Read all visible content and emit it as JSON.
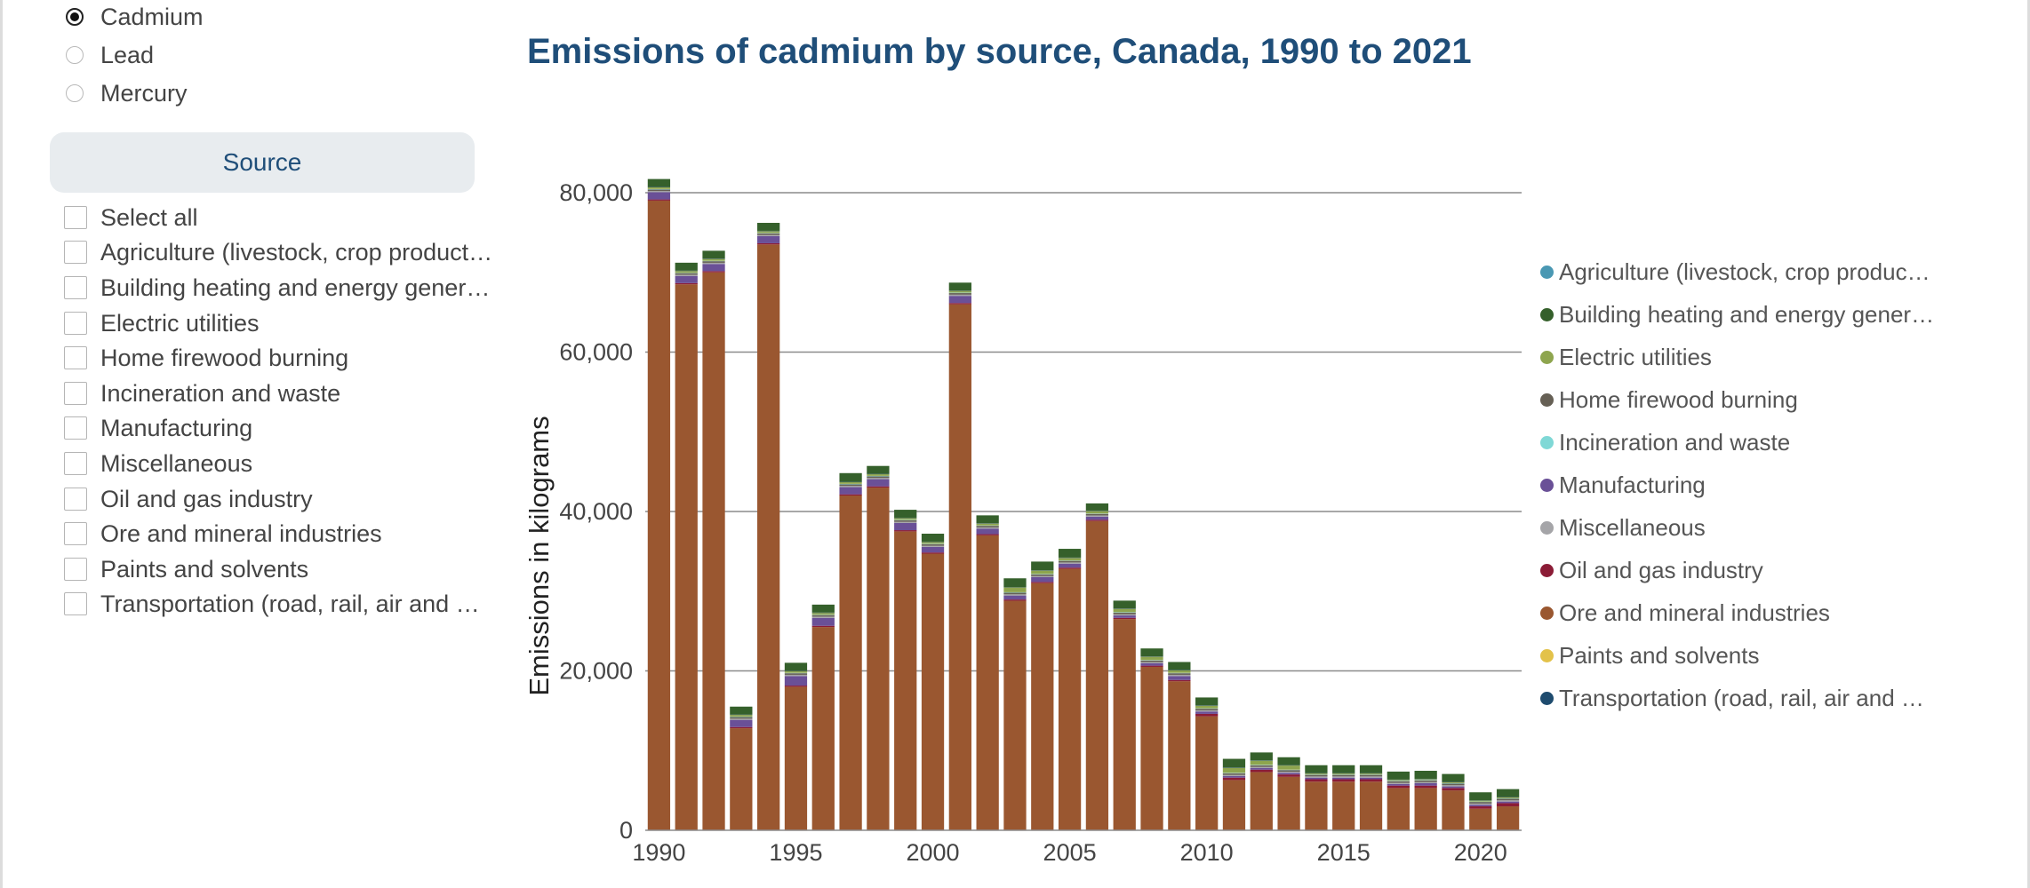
{
  "controls": {
    "pollutants": [
      {
        "label": "Cadmium",
        "checked": true
      },
      {
        "label": "Lead",
        "checked": false
      },
      {
        "label": "Mercury",
        "checked": false
      }
    ],
    "source_button": "Source",
    "source_options": [
      "Select all",
      "Agriculture (livestock, crop product…",
      "Building heating and energy gener…",
      "Electric utilities",
      "Home firewood burning",
      "Incineration and waste",
      "Manufacturing",
      "Miscellaneous",
      "Oil and gas industry",
      "Ore and mineral industries",
      "Paints and solvents",
      "Transportation (road, rail, air and …"
    ]
  },
  "chart_data": {
    "type": "bar",
    "stacked": true,
    "title": "Emissions of cadmium by source, Canada, 1990 to 2021",
    "xlabel": "",
    "ylabel": "Emissions in kilograms",
    "ylim": [
      0,
      80000
    ],
    "yticks": [
      0,
      20000,
      40000,
      60000,
      80000
    ],
    "ytick_labels": [
      "0",
      "20,000",
      "40,000",
      "60,000",
      "80,000"
    ],
    "xtick_labels": [
      "1990",
      "1995",
      "2000",
      "2005",
      "2010",
      "2015",
      "2020"
    ],
    "grid": true,
    "legend_position": "right",
    "categories": [
      "1990",
      "1991",
      "1992",
      "1993",
      "1994",
      "1995",
      "1996",
      "1997",
      "1998",
      "1999",
      "2000",
      "2001",
      "2002",
      "2003",
      "2004",
      "2005",
      "2006",
      "2007",
      "2008",
      "2009",
      "2010",
      "2011",
      "2012",
      "2013",
      "2014",
      "2015",
      "2016",
      "2017",
      "2018",
      "2019",
      "2020",
      "2021"
    ],
    "series": [
      {
        "name": "Agriculture (livestock, crop produc…",
        "color": "#4a98b3",
        "values": [
          5,
          5,
          5,
          5,
          5,
          5,
          5,
          5,
          5,
          5,
          5,
          5,
          5,
          5,
          5,
          5,
          5,
          5,
          5,
          5,
          5,
          5,
          5,
          5,
          5,
          5,
          5,
          5,
          5,
          5,
          5,
          5
        ]
      },
      {
        "name": "Ore and mineral industries",
        "color": "#9a5730",
        "values": [
          79000,
          68500,
          70000,
          12800,
          73500,
          18000,
          25500,
          42000,
          43000,
          37500,
          34700,
          66000,
          37000,
          28800,
          31000,
          32800,
          38800,
          26500,
          20500,
          18700,
          14300,
          6300,
          7300,
          6700,
          6100,
          6100,
          6100,
          5300,
          5300,
          5000,
          2700,
          3000
        ]
      },
      {
        "name": "Oil and gas industry",
        "color": "#8b1c36",
        "values": [
          150,
          150,
          150,
          150,
          150,
          150,
          150,
          150,
          150,
          150,
          150,
          150,
          150,
          150,
          150,
          150,
          150,
          150,
          150,
          150,
          300,
          300,
          300,
          300,
          300,
          300,
          300,
          300,
          300,
          300,
          300,
          400
        ]
      },
      {
        "name": "Manufacturing",
        "color": "#6a5097",
        "values": [
          900,
          900,
          900,
          900,
          900,
          1200,
          1000,
          900,
          900,
          900,
          700,
          900,
          700,
          500,
          600,
          500,
          400,
          300,
          300,
          500,
          300,
          200,
          200,
          200,
          200,
          200,
          200,
          200,
          300,
          200,
          200,
          200
        ]
      },
      {
        "name": "Miscellaneous",
        "color": "#a5a5a8",
        "values": [
          150,
          150,
          150,
          150,
          150,
          150,
          150,
          150,
          150,
          150,
          150,
          150,
          150,
          150,
          150,
          150,
          150,
          150,
          150,
          150,
          150,
          150,
          150,
          150,
          150,
          150,
          150,
          150,
          150,
          150,
          150,
          150
        ]
      },
      {
        "name": "Home firewood burning",
        "color": "#666055",
        "values": [
          200,
          200,
          200,
          200,
          200,
          200,
          200,
          200,
          200,
          200,
          200,
          200,
          200,
          200,
          200,
          200,
          200,
          200,
          200,
          200,
          200,
          200,
          200,
          200,
          200,
          200,
          200,
          200,
          200,
          200,
          200,
          200
        ]
      },
      {
        "name": "Incineration and waste",
        "color": "#7fd8d6",
        "values": [
          50,
          50,
          50,
          50,
          50,
          50,
          50,
          50,
          50,
          50,
          50,
          50,
          50,
          50,
          50,
          50,
          50,
          50,
          50,
          50,
          50,
          50,
          50,
          50,
          50,
          50,
          50,
          50,
          50,
          50,
          50,
          50
        ]
      },
      {
        "name": "Paints and solvents",
        "color": "#e3c24a",
        "values": [
          20,
          20,
          20,
          20,
          20,
          20,
          20,
          20,
          20,
          20,
          20,
          20,
          20,
          20,
          20,
          20,
          20,
          20,
          20,
          20,
          20,
          20,
          20,
          20,
          20,
          20,
          20,
          20,
          20,
          20,
          20,
          20
        ]
      },
      {
        "name": "Electric utilities",
        "color": "#8ea54e",
        "values": [
          200,
          200,
          200,
          200,
          200,
          200,
          200,
          200,
          200,
          200,
          200,
          200,
          200,
          600,
          400,
          300,
          300,
          400,
          400,
          300,
          300,
          600,
          500,
          500,
          100,
          100,
          100,
          100,
          100,
          100,
          100,
          100
        ]
      },
      {
        "name": "Transportation (road, rail, air and …",
        "color": "#1e4b6e",
        "values": [
          40,
          40,
          40,
          40,
          40,
          40,
          40,
          40,
          40,
          40,
          40,
          40,
          40,
          40,
          40,
          40,
          40,
          40,
          40,
          40,
          40,
          40,
          40,
          40,
          40,
          40,
          40,
          40,
          40,
          40,
          40,
          40
        ]
      },
      {
        "name": "Building heating and energy gener…",
        "color": "#35602b",
        "values": [
          1000,
          1000,
          1000,
          1000,
          1000,
          1000,
          1000,
          1100,
          1000,
          1000,
          1000,
          1000,
          1000,
          1100,
          1100,
          1100,
          900,
          1000,
          1000,
          1000,
          1000,
          1100,
          1000,
          1000,
          1000,
          1000,
          1000,
          1000,
          1000,
          1000,
          1000,
          1000
        ]
      }
    ],
    "legend_order": [
      "Agriculture (livestock, crop produc…",
      "Building heating and energy gener…",
      "Electric utilities",
      "Home firewood burning",
      "Incineration and waste",
      "Manufacturing",
      "Miscellaneous",
      "Oil and gas industry",
      "Ore and mineral industries",
      "Paints and solvents",
      "Transportation (road, rail, air and …"
    ]
  }
}
